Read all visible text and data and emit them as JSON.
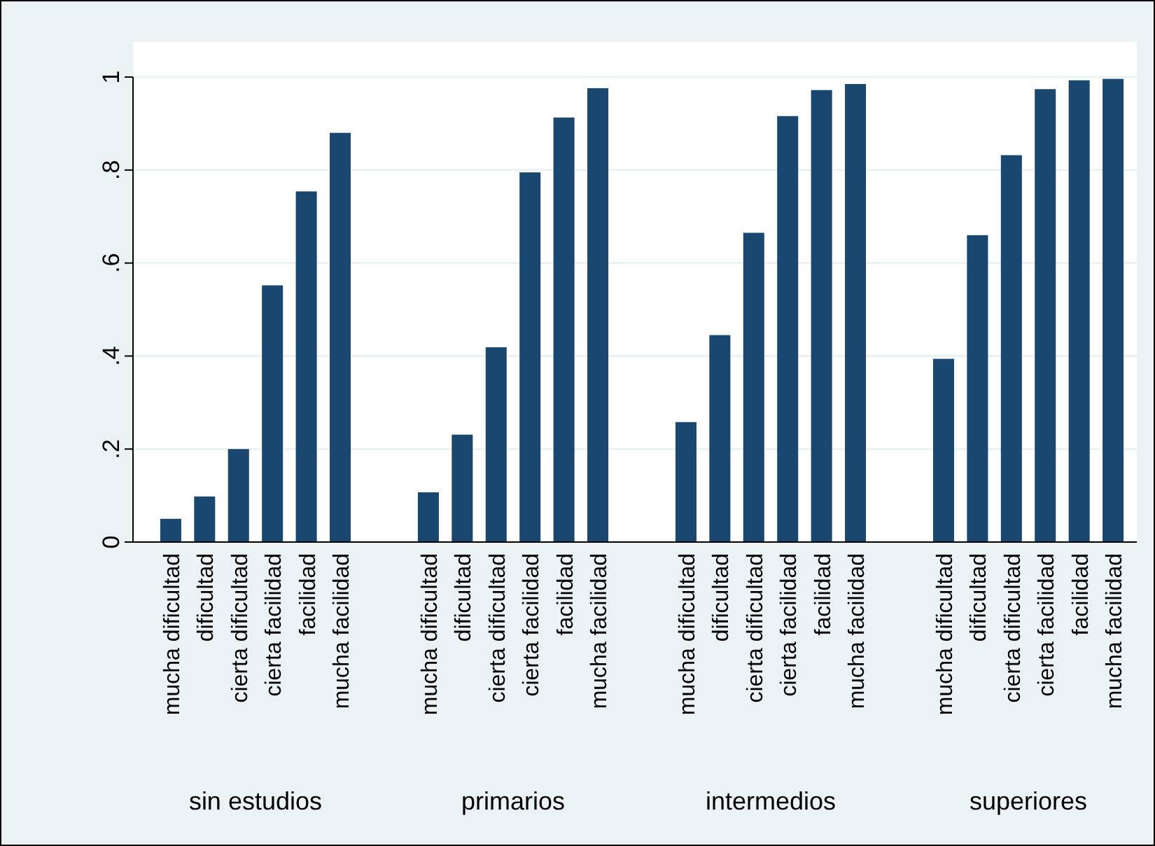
{
  "chart_data": {
    "type": "bar",
    "categories": [
      "mucha dificultad",
      "dificultad",
      "cierta dificultad",
      "cierta facilidad",
      "facilidad",
      "mucha facilidad",
      "mucha dificultad",
      "dificultad",
      "cierta dificultad",
      "cierta facilidad",
      "facilidad",
      "mucha facilidad",
      "mucha dificultad",
      "dificultad",
      "cierta dificultad",
      "cierta facilidad",
      "facilidad",
      "mucha facilidad",
      "mucha dificultad",
      "dificultad",
      "cierta dificultad",
      "cierta facilidad",
      "facilidad",
      "mucha facilidad"
    ],
    "values": [
      0.05,
      0.098,
      0.2,
      0.552,
      0.754,
      0.88,
      0.107,
      0.231,
      0.419,
      0.795,
      0.913,
      0.976,
      0.258,
      0.445,
      0.665,
      0.916,
      0.972,
      0.985,
      0.394,
      0.66,
      0.832,
      0.974,
      0.993,
      0.996
    ],
    "color": "#1a476f",
    "annotations": [
      "sin estudios",
      "primarios",
      "intermedios",
      "superiores"
    ],
    "ylim": [
      0,
      1
    ],
    "yticks": [
      0,
      {
        "value": 0.2,
        "label": ".2"
      },
      {
        "value": 0.4,
        "label": ".4"
      },
      {
        "value": 0.6,
        "label": ".6"
      },
      {
        "value": 0.8,
        "label": ".8"
      },
      1
    ],
    "grid": "y"
  }
}
